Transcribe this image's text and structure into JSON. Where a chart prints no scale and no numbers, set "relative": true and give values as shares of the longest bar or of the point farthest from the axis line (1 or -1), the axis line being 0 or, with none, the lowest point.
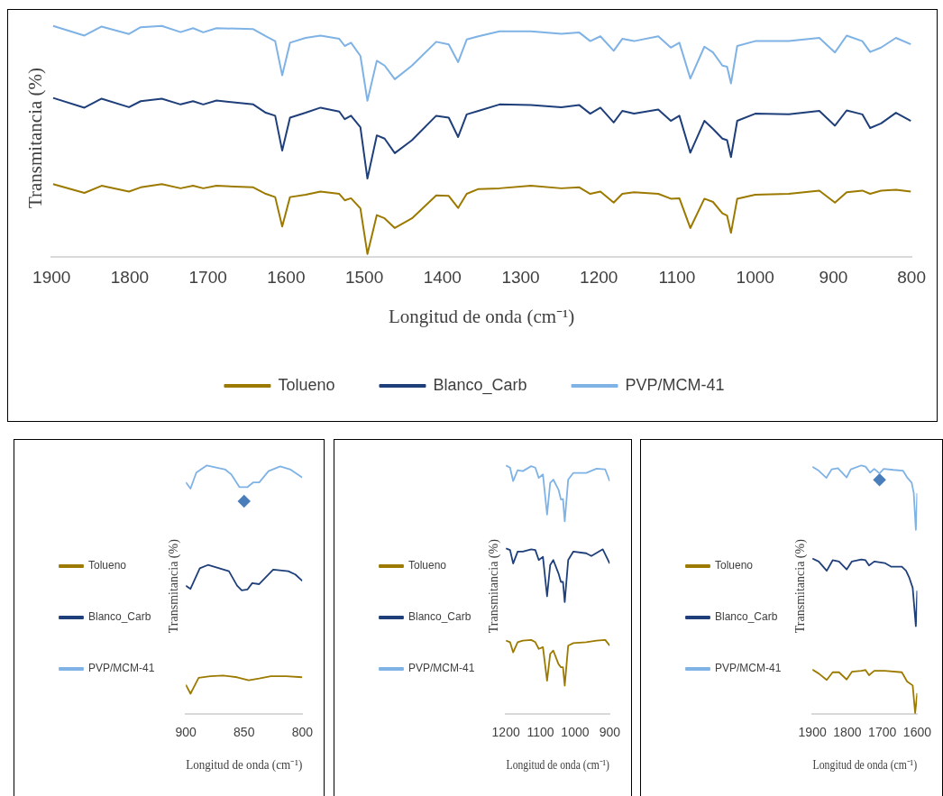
{
  "chart_data": [
    {
      "type": "line",
      "relative": true,
      "xlabel": "Longitud de onda (cm⁻¹)",
      "ylabel": "Transmitancia (%)",
      "xlim": [
        1900,
        800
      ],
      "xticks": [
        1900,
        1800,
        1700,
        1600,
        1500,
        1400,
        1300,
        1200,
        1100,
        1000,
        900,
        800
      ],
      "legend": "bottom",
      "marker": "none",
      "line_style": "solid",
      "grid": false,
      "x": [
        1898,
        1858,
        1836,
        1801,
        1786,
        1759,
        1735,
        1719,
        1706,
        1689,
        1642,
        1626,
        1614,
        1605,
        1595,
        1575,
        1556,
        1532,
        1525,
        1517,
        1505,
        1496,
        1484,
        1474,
        1461,
        1439,
        1408,
        1392,
        1380,
        1369,
        1354,
        1327,
        1287,
        1248,
        1225,
        1211,
        1198,
        1181,
        1170,
        1155,
        1124,
        1108,
        1097,
        1083,
        1065,
        1054,
        1042,
        1036,
        1031,
        1023,
        1000,
        957,
        918,
        898,
        883,
        863,
        853,
        839,
        820,
        801
      ],
      "series": [
        {
          "name": "Tolueno",
          "color": "#9c7a00",
          "values": [
            0.315,
            0.277,
            0.308,
            0.283,
            0.301,
            0.315,
            0.297,
            0.308,
            0.297,
            0.308,
            0.301,
            0.273,
            0.259,
            0.132,
            0.259,
            0.269,
            0.283,
            0.273,
            0.245,
            0.254,
            0.21,
            0.013,
            0.181,
            0.167,
            0.125,
            0.167,
            0.266,
            0.264,
            0.212,
            0.273,
            0.294,
            0.297,
            0.308,
            0.297,
            0.301,
            0.273,
            0.283,
            0.235,
            0.273,
            0.28,
            0.273,
            0.252,
            0.254,
            0.125,
            0.252,
            0.238,
            0.189,
            0.179,
            0.104,
            0.252,
            0.269,
            0.273,
            0.287,
            0.235,
            0.28,
            0.287,
            0.273,
            0.287,
            0.291,
            0.283
          ]
        },
        {
          "name": "Blanco_Carb",
          "color": "#1f3f7a",
          "values": [
            0.688,
            0.646,
            0.685,
            0.648,
            0.674,
            0.685,
            0.66,
            0.674,
            0.66,
            0.677,
            0.66,
            0.624,
            0.611,
            0.46,
            0.603,
            0.624,
            0.646,
            0.629,
            0.596,
            0.611,
            0.561,
            0.339,
            0.526,
            0.512,
            0.449,
            0.505,
            0.611,
            0.603,
            0.519,
            0.617,
            0.632,
            0.66,
            0.657,
            0.648,
            0.657,
            0.62,
            0.646,
            0.582,
            0.632,
            0.62,
            0.638,
            0.589,
            0.611,
            0.451,
            0.589,
            0.554,
            0.512,
            0.505,
            0.432,
            0.589,
            0.62,
            0.617,
            0.632,
            0.568,
            0.634,
            0.617,
            0.558,
            0.578,
            0.624,
            0.589
          ]
        },
        {
          "name": "PVP/MCM-41",
          "color": "#7fb2e5",
          "values": [
            1.0,
            0.958,
            0.997,
            0.965,
            0.994,
            1.0,
            0.973,
            0.99,
            0.972,
            0.99,
            0.986,
            0.955,
            0.934,
            0.786,
            0.927,
            0.948,
            0.958,
            0.944,
            0.913,
            0.927,
            0.87,
            0.676,
            0.849,
            0.828,
            0.769,
            0.828,
            0.931,
            0.92,
            0.843,
            0.941,
            0.955,
            0.976,
            0.976,
            0.966,
            0.971,
            0.934,
            0.955,
            0.892,
            0.944,
            0.934,
            0.955,
            0.906,
            0.927,
            0.772,
            0.91,
            0.885,
            0.828,
            0.823,
            0.751,
            0.913,
            0.934,
            0.934,
            0.948,
            0.885,
            0.958,
            0.934,
            0.887,
            0.906,
            0.948,
            0.92
          ]
        }
      ]
    },
    {
      "type": "line",
      "relative": true,
      "xlabel": "Longitud de onda (cm⁻¹)",
      "ylabel": "Transmitancia (%)",
      "xlim": [
        900,
        800
      ],
      "xticks": [
        900,
        850,
        800
      ],
      "legend": "left",
      "marker": "none",
      "line_style": "solid",
      "grid": false,
      "series": [
        {
          "name": "Tolueno",
          "color": "#9c7a00",
          "x": [
            900,
            896,
            889,
            879,
            868,
            856,
            846,
            837,
            827,
            814,
            800
          ],
          "values": [
            0.119,
            0.083,
            0.147,
            0.153,
            0.156,
            0.149,
            0.137,
            0.144,
            0.153,
            0.153,
            0.149
          ]
        },
        {
          "name": "Blanco_Carb",
          "color": "#1f3f7a",
          "x": [
            900,
            896,
            888,
            881,
            863,
            856,
            852,
            847,
            843,
            837,
            825,
            812,
            806,
            800
          ],
          "values": [
            0.517,
            0.504,
            0.587,
            0.6,
            0.575,
            0.517,
            0.498,
            0.502,
            0.527,
            0.523,
            0.581,
            0.575,
            0.562,
            0.536
          ]
        },
        {
          "name": "PVP/MCM-41",
          "color": "#7fb2e5",
          "x": [
            900,
            896,
            891,
            882,
            866,
            861,
            854,
            847,
            842,
            837,
            829,
            819,
            810,
            800
          ],
          "values": [
            0.932,
            0.907,
            0.971,
            1.0,
            0.983,
            0.964,
            0.913,
            0.913,
            0.932,
            0.932,
            0.977,
            0.996,
            0.983,
            0.951
          ]
        },
        {
          "type": "scatter",
          "marker": "diamond",
          "color": "#4a7ebb",
          "x": [
            850
          ],
          "values": [
            0.856
          ]
        }
      ]
    },
    {
      "type": "line",
      "relative": true,
      "xlabel": "Longitud de onda (cm⁻¹)",
      "ylabel": "Transmitancia (%)",
      "xlim": [
        1200,
        900
      ],
      "xticks": [
        1200,
        1100,
        1000,
        900
      ],
      "legend": "left",
      "marker": "none",
      "line_style": "solid",
      "grid": false,
      "series": [
        {
          "name": "Tolueno",
          "color": "#9c7a00",
          "x": [
            1200,
            1188,
            1179,
            1166,
            1151,
            1127,
            1115,
            1105,
            1093,
            1081,
            1072,
            1063,
            1048,
            1041,
            1035,
            1030,
            1020,
            1005,
            968,
            938,
            913,
            900
          ],
          "values": [
            0.296,
            0.29,
            0.249,
            0.29,
            0.296,
            0.299,
            0.29,
            0.263,
            0.27,
            0.135,
            0.243,
            0.256,
            0.202,
            0.189,
            0.189,
            0.115,
            0.276,
            0.286,
            0.29,
            0.296,
            0.299,
            0.276
          ]
        },
        {
          "name": "Blanco_Carb",
          "color": "#1f3f7a",
          "x": [
            1200,
            1188,
            1179,
            1166,
            1151,
            1127,
            1115,
            1105,
            1093,
            1081,
            1072,
            1063,
            1048,
            1041,
            1035,
            1030,
            1020,
            1005,
            968,
            953,
            920,
            900
          ],
          "values": [
            0.667,
            0.66,
            0.606,
            0.654,
            0.654,
            0.663,
            0.66,
            0.62,
            0.633,
            0.474,
            0.6,
            0.62,
            0.566,
            0.532,
            0.532,
            0.451,
            0.62,
            0.654,
            0.647,
            0.636,
            0.663,
            0.606
          ]
        },
        {
          "name": "PVP/MCM-41",
          "color": "#7fb2e5",
          "x": [
            1200,
            1188,
            1179,
            1166,
            1151,
            1127,
            1115,
            1105,
            1093,
            1081,
            1072,
            1063,
            1048,
            1041,
            1035,
            1030,
            1020,
            1005,
            968,
            938,
            913,
            900
          ],
          "values": [
            1.0,
            0.991,
            0.937,
            0.981,
            0.977,
            0.997,
            0.991,
            0.95,
            0.964,
            0.802,
            0.93,
            0.943,
            0.903,
            0.863,
            0.865,
            0.775,
            0.943,
            0.97,
            0.97,
            0.987,
            0.984,
            0.937
          ]
        }
      ]
    },
    {
      "type": "line",
      "relative": true,
      "xlabel": "Longitud de onda (cm⁻¹)",
      "ylabel": "Transmitancia (%)",
      "xlim": [
        1900,
        1600
      ],
      "xticks": [
        1900,
        1800,
        1700,
        1600
      ],
      "legend": "left",
      "marker": "none",
      "line_style": "solid",
      "grid": false,
      "series": [
        {
          "name": "Tolueno",
          "color": "#9c7a00",
          "x": [
            1900,
            1882,
            1859,
            1842,
            1824,
            1802,
            1787,
            1760,
            1748,
            1738,
            1723,
            1693,
            1644,
            1629,
            1613,
            1606,
            1600
          ],
          "values": [
            0.18,
            0.164,
            0.138,
            0.169,
            0.169,
            0.14,
            0.171,
            0.175,
            0.178,
            0.157,
            0.175,
            0.175,
            0.169,
            0.132,
            0.116,
            0.005,
            0.085
          ]
        },
        {
          "name": "Blanco_Carb",
          "color": "#1f3f7a",
          "x": [
            1900,
            1882,
            1859,
            1842,
            1824,
            1802,
            1787,
            1760,
            1748,
            1738,
            1723,
            1693,
            1674,
            1644,
            1632,
            1623,
            1613,
            1604,
            1600
          ],
          "values": [
            0.626,
            0.614,
            0.577,
            0.619,
            0.614,
            0.582,
            0.614,
            0.622,
            0.619,
            0.598,
            0.614,
            0.608,
            0.593,
            0.593,
            0.577,
            0.55,
            0.508,
            0.354,
            0.497
          ]
        },
        {
          "name": "PVP/MCM-41",
          "color": "#7fb2e5",
          "x": [
            1900,
            1882,
            1860,
            1845,
            1827,
            1802,
            1790,
            1760,
            1748,
            1735,
            1723,
            1708,
            1696,
            1668,
            1641,
            1629,
            1616,
            1610,
            1604,
            1600
          ],
          "values": [
            0.995,
            0.979,
            0.95,
            0.984,
            0.989,
            0.952,
            0.984,
            1.0,
            0.995,
            0.971,
            0.986,
            0.968,
            0.986,
            0.982,
            0.979,
            0.952,
            0.931,
            0.889,
            0.741,
            0.889
          ]
        },
        {
          "type": "scatter",
          "marker": "diamond",
          "color": "#4a7ebb",
          "x": [
            1708
          ],
          "values": [
            0.942
          ]
        }
      ]
    }
  ]
}
